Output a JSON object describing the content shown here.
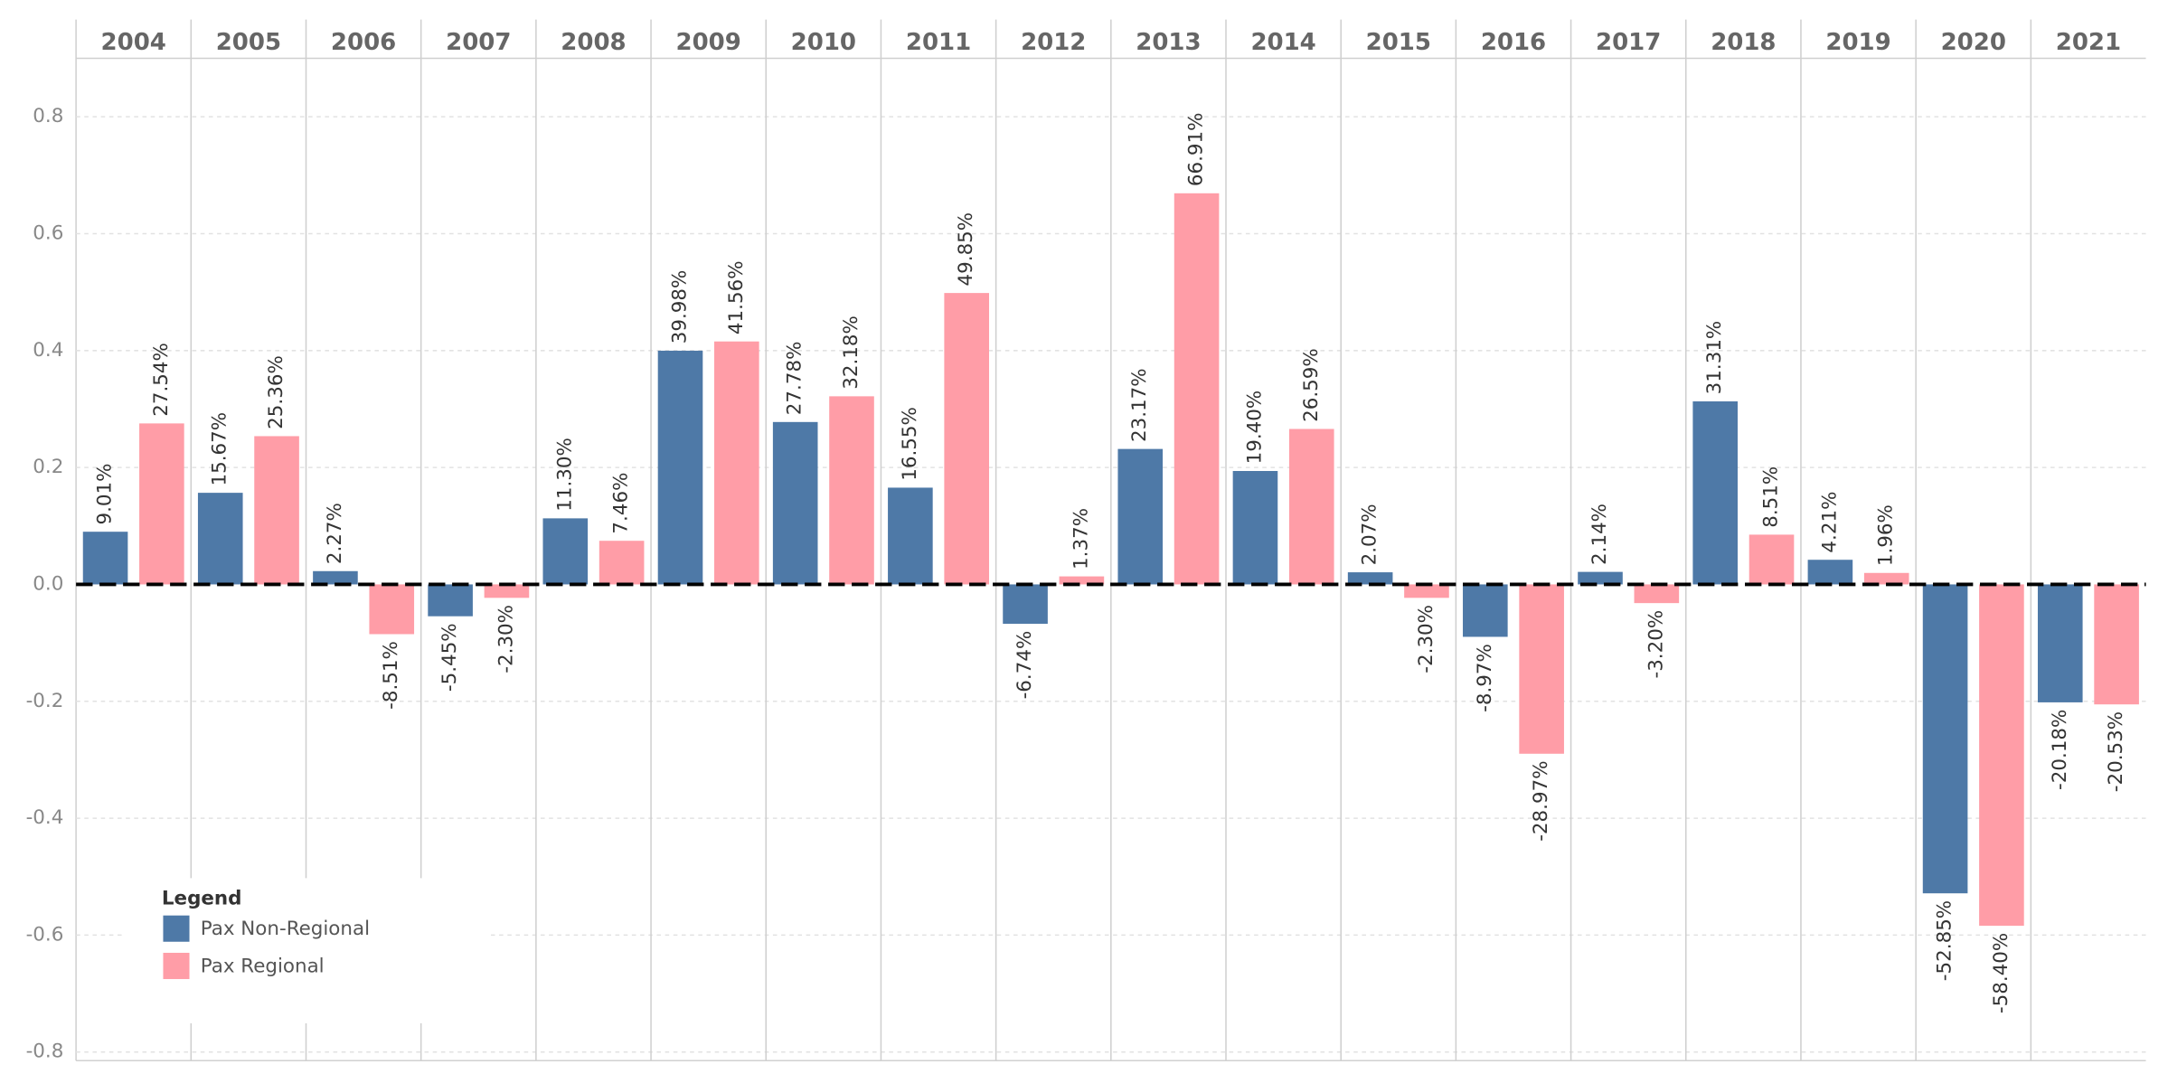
{
  "chart_data": {
    "type": "bar",
    "categories": [
      "2004",
      "2005",
      "2006",
      "2007",
      "2008",
      "2009",
      "2010",
      "2011",
      "2012",
      "2013",
      "2014",
      "2015",
      "2016",
      "2017",
      "2018",
      "2019",
      "2020",
      "2021"
    ],
    "series": [
      {
        "name": "Pax Non-Regional",
        "color": "#4e79a7",
        "values": [
          0.0901,
          0.1567,
          0.0227,
          -0.0545,
          0.113,
          0.3998,
          0.2778,
          0.1655,
          -0.0674,
          0.2317,
          0.194,
          0.0207,
          -0.0897,
          0.0214,
          0.3131,
          0.0421,
          -0.5285,
          -0.2018
        ],
        "value_labels": [
          "9.01%",
          "15.67%",
          "2.27%",
          "-5.45%",
          "11.30%",
          "39.98%",
          "27.78%",
          "16.55%",
          "-6.74%",
          "23.17%",
          "19.40%",
          "2.07%",
          "-8.97%",
          "2.14%",
          "31.31%",
          "4.21%",
          "-52.85%",
          "-20.18%"
        ]
      },
      {
        "name": "Pax Regional",
        "color": "#ff9da7",
        "values": [
          0.2754,
          0.2536,
          -0.0851,
          -0.023,
          0.0746,
          0.4156,
          0.3218,
          0.4985,
          0.0137,
          0.6691,
          0.2659,
          -0.023,
          -0.2897,
          -0.032,
          0.0851,
          0.0196,
          -0.584,
          -0.2053
        ],
        "value_labels": [
          "27.54%",
          "25.36%",
          "-8.51%",
          "-2.30%",
          "7.46%",
          "41.56%",
          "32.18%",
          "49.85%",
          "1.37%",
          "66.91%",
          "26.59%",
          "-2.30%",
          "-28.97%",
          "-3.20%",
          "8.51%",
          "1.96%",
          "-58.40%",
          "-20.53%"
        ]
      }
    ],
    "ylim": [
      -0.81,
      0.9
    ],
    "yticks": [
      0.8,
      0.6,
      0.4,
      0.2,
      {
        "value": 0,
        "label": "0.0"
      },
      -0.2,
      -0.4,
      -0.6,
      -0.8
    ],
    "grid": true,
    "legend_title": "Legend",
    "legend_position": "lower left"
  }
}
